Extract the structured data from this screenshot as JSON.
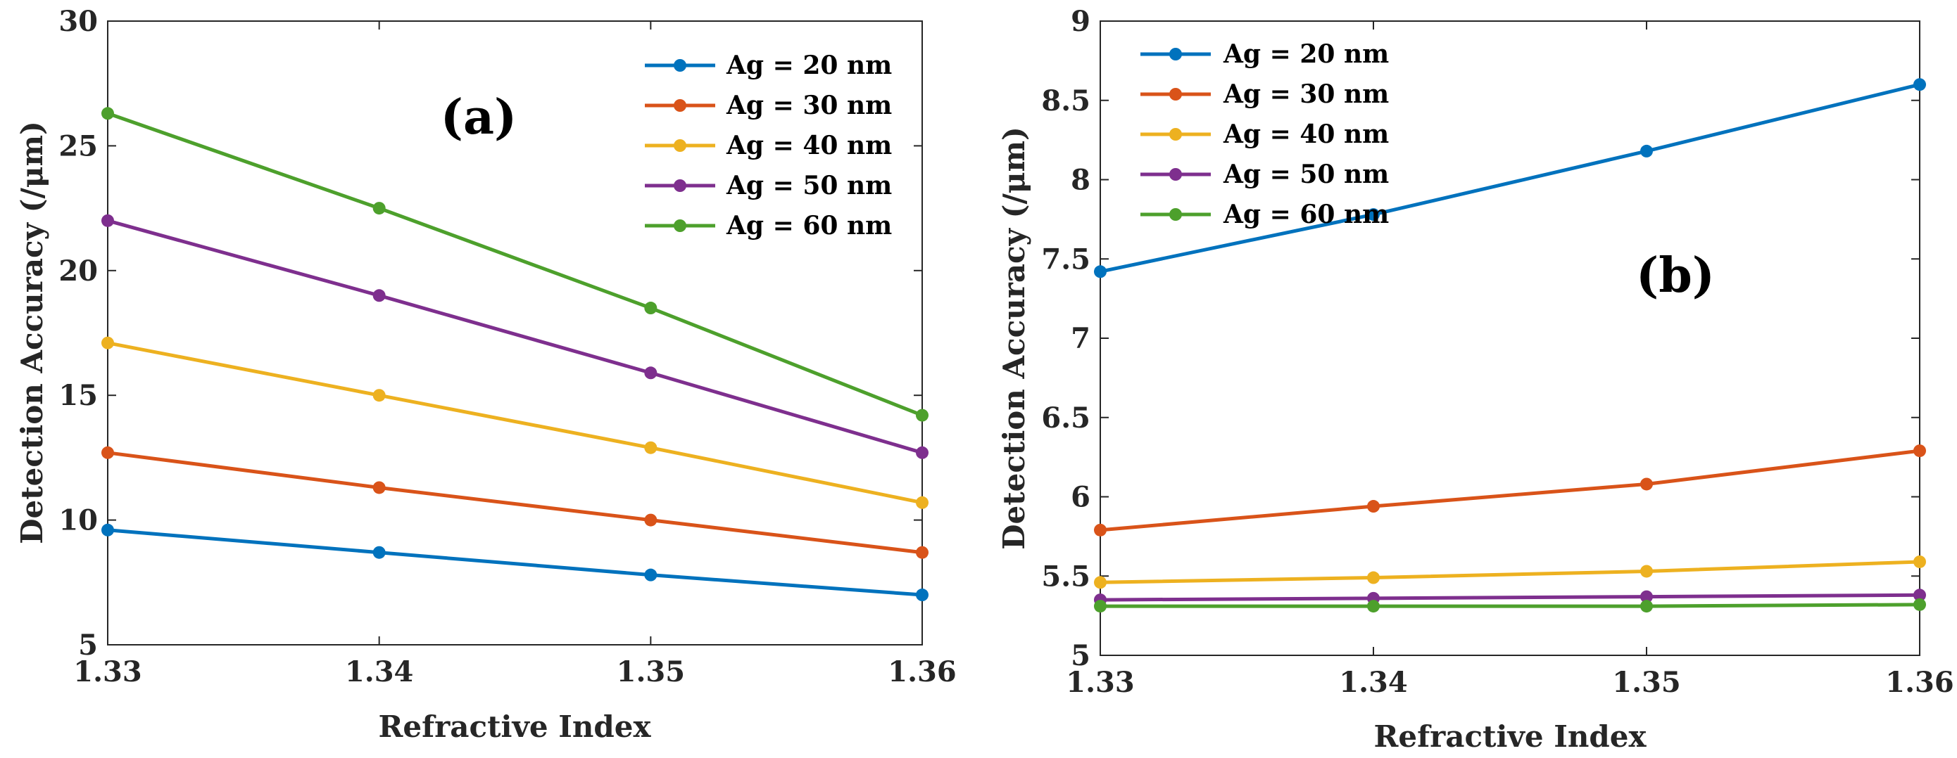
{
  "chart_data": [
    {
      "type": "line",
      "panel_label": "(a)",
      "title": "",
      "xlabel": "Refractive Index",
      "ylabel": "Detection Accuracy (/μm)",
      "xlim": [
        1.33,
        1.36
      ],
      "ylim": [
        5,
        30
      ],
      "xticks": [
        "1.33",
        "1.34",
        "1.35",
        "1.36"
      ],
      "yticks": [
        "5",
        "10",
        "15",
        "20",
        "25",
        "30"
      ],
      "legend_position": "top-right",
      "x": [
        1.33,
        1.34,
        1.35,
        1.36
      ],
      "series": [
        {
          "name": "Ag = 20 nm",
          "color": "#0072BD",
          "values": [
            9.6,
            8.7,
            7.8,
            7.0
          ]
        },
        {
          "name": "Ag = 30 nm",
          "color": "#D95319",
          "values": [
            12.7,
            11.3,
            10.0,
            8.7
          ]
        },
        {
          "name": "Ag = 40 nm",
          "color": "#EDB120",
          "values": [
            17.1,
            15.0,
            12.9,
            10.7
          ]
        },
        {
          "name": "Ag = 50 nm",
          "color": "#7E2F8E",
          "values": [
            22.0,
            19.0,
            15.9,
            12.7
          ]
        },
        {
          "name": "Ag = 60 nm",
          "color": "#4DA02C",
          "values": [
            26.3,
            22.5,
            18.5,
            14.2
          ]
        }
      ]
    },
    {
      "type": "line",
      "panel_label": "(b)",
      "title": "",
      "xlabel": "Refractive Index",
      "ylabel": "Detection Accuracy (/μm)",
      "xlim": [
        1.33,
        1.36
      ],
      "ylim": [
        5,
        9
      ],
      "xticks": [
        "1.33",
        "1.34",
        "1.35",
        "1.36"
      ],
      "yticks": [
        "5",
        "5.5",
        "6",
        "6.5",
        "7",
        "7.5",
        "8",
        "8.5",
        "9"
      ],
      "legend_position": "top-left",
      "x": [
        1.33,
        1.34,
        1.35,
        1.36
      ],
      "series": [
        {
          "name": "Ag = 20 nm",
          "color": "#0072BD",
          "values": [
            7.42,
            7.78,
            8.18,
            8.6
          ]
        },
        {
          "name": "Ag = 30 nm",
          "color": "#D95319",
          "values": [
            5.79,
            5.94,
            6.08,
            6.29
          ]
        },
        {
          "name": "Ag = 40 nm",
          "color": "#EDB120",
          "values": [
            5.46,
            5.49,
            5.53,
            5.59
          ]
        },
        {
          "name": "Ag = 50 nm",
          "color": "#7E2F8E",
          "values": [
            5.35,
            5.36,
            5.37,
            5.38
          ]
        },
        {
          "name": "Ag = 60 nm",
          "color": "#4DA02C",
          "values": [
            5.31,
            5.31,
            5.31,
            5.32
          ]
        }
      ]
    }
  ]
}
